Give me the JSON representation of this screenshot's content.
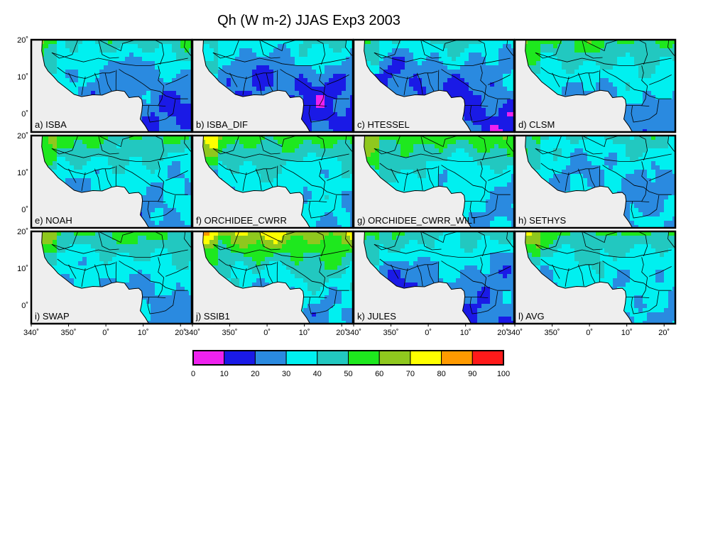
{
  "title": "Qh (W m-2) JJAS Exp3 2003",
  "lon_labels": [
    "340˚",
    "350˚",
    "0˚",
    "10˚",
    "20˚"
  ],
  "lat_labels": [
    "20˚",
    "10˚",
    "0˚"
  ],
  "colorbar": {
    "levels": [
      "0",
      "10",
      "20",
      "30",
      "40",
      "50",
      "60",
      "70",
      "80",
      "90",
      "100"
    ],
    "colors": [
      "#ee22ee",
      "#1a1ae6",
      "#2a8ae0",
      "#00f0f0",
      "#22c8c0",
      "#1ee81e",
      "#8fc81e",
      "#ffff00",
      "#ff9a00",
      "#ff1a1a"
    ]
  },
  "chart_data": {
    "type": "heatmap",
    "variable": "Qh",
    "units": "W m-2",
    "season": "JJAS",
    "experiment": "Exp3",
    "year": "2003",
    "lon_range": [
      340,
      23
    ],
    "lat_range": [
      -5,
      20
    ],
    "value_range": [
      0,
      100
    ],
    "panels": [
      {
        "label": "a) ISBA",
        "style": "low"
      },
      {
        "label": "b) ISBA_DIF",
        "style": "verylow"
      },
      {
        "label": "c) HTESSEL",
        "style": "verylow"
      },
      {
        "label": "d) CLSM",
        "style": "mid"
      },
      {
        "label": "e) NOAH",
        "style": "mid"
      },
      {
        "label": "f) ORCHIDEE_CWRR",
        "style": "midhigh"
      },
      {
        "label": "g) ORCHIDEE_CWRR_WILT",
        "style": "midhigh"
      },
      {
        "label": "h) SETHYS",
        "style": "lowsouth"
      },
      {
        "label": "i) SWAP",
        "style": "mid"
      },
      {
        "label": "j) SSIB1",
        "style": "high"
      },
      {
        "label": "k) JULES",
        "style": "low"
      },
      {
        "label": "l) AVG",
        "style": "mid"
      }
    ]
  }
}
